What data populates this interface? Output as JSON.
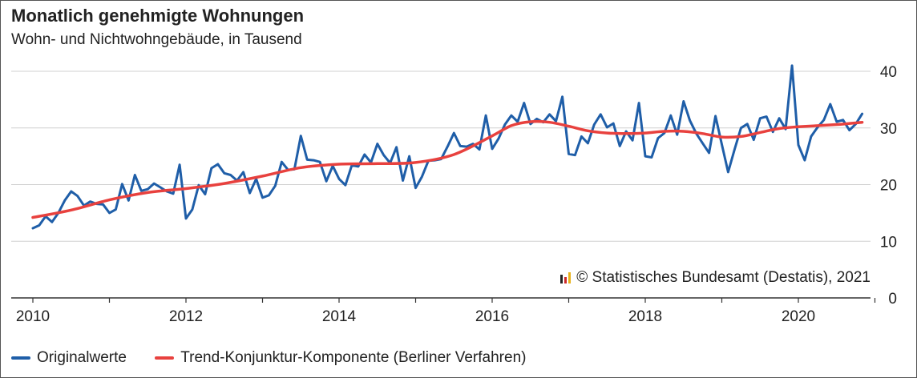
{
  "title": "Monatlich genehmigte Wohnungen",
  "subtitle": "Wohn- und Nichtwohngebäude, in Tausend",
  "source": "© Statistisches Bundesamt (Destatis), 2021",
  "colors": {
    "original": "#1f5ea8",
    "trend": "#e8413e",
    "grid": "#d0d0d0",
    "axis": "#333333",
    "logo": [
      "#222222",
      "#cc2a2a",
      "#e8b21a"
    ]
  },
  "chart_data": {
    "type": "line",
    "title": "Monatlich genehmigte Wohnungen",
    "subtitle": "Wohn- und Nichtwohngebäude, in Tausend",
    "xlim": [
      2010,
      2021
    ],
    "ylim": [
      0,
      40
    ],
    "y_axis_side": "right",
    "grid": true,
    "legend_position": "bottom",
    "x_ticks": [
      "2010",
      "2012",
      "2014",
      "2016",
      "2018",
      "2020"
    ],
    "y_ticks": [
      "0",
      "10",
      "20",
      "30",
      "40"
    ],
    "series": [
      {
        "name": "Originalwerte",
        "x": [
          2010.0,
          2010.083,
          2010.167,
          2010.25,
          2010.333,
          2010.417,
          2010.5,
          2010.583,
          2010.667,
          2010.75,
          2010.833,
          2010.917,
          2011.0,
          2011.083,
          2011.167,
          2011.25,
          2011.333,
          2011.417,
          2011.5,
          2011.583,
          2011.667,
          2011.75,
          2011.833,
          2011.917,
          2012.0,
          2012.083,
          2012.167,
          2012.25,
          2012.333,
          2012.417,
          2012.5,
          2012.583,
          2012.667,
          2012.75,
          2012.833,
          2012.917,
          2013.0,
          2013.083,
          2013.167,
          2013.25,
          2013.333,
          2013.417,
          2013.5,
          2013.583,
          2013.667,
          2013.75,
          2013.833,
          2013.917,
          2014.0,
          2014.083,
          2014.167,
          2014.25,
          2014.333,
          2014.417,
          2014.5,
          2014.583,
          2014.667,
          2014.75,
          2014.833,
          2014.917,
          2015.0,
          2015.083,
          2015.167,
          2015.25,
          2015.333,
          2015.417,
          2015.5,
          2015.583,
          2015.667,
          2015.75,
          2015.833,
          2015.917,
          2016.0,
          2016.083,
          2016.167,
          2016.25,
          2016.333,
          2016.417,
          2016.5,
          2016.583,
          2016.667,
          2016.75,
          2016.833,
          2016.917,
          2017.0,
          2017.083,
          2017.167,
          2017.25,
          2017.333,
          2017.417,
          2017.5,
          2017.583,
          2017.667,
          2017.75,
          2017.833,
          2017.917,
          2018.0,
          2018.083,
          2018.167,
          2018.25,
          2018.333,
          2018.417,
          2018.5,
          2018.583,
          2018.667,
          2018.75,
          2018.833,
          2018.917,
          2019.0,
          2019.083,
          2019.167,
          2019.25,
          2019.333,
          2019.417,
          2019.5,
          2019.583,
          2019.667,
          2019.75,
          2019.833,
          2019.917,
          2020.0,
          2020.083,
          2020.167,
          2020.25,
          2020.333,
          2020.417,
          2020.5,
          2020.583,
          2020.667,
          2020.75,
          2020.833
        ],
        "values": [
          12.3,
          12.8,
          14.4,
          13.4,
          15.0,
          17.2,
          18.8,
          18.0,
          16.3,
          17.0,
          16.6,
          16.5,
          15.0,
          15.6,
          20.1,
          17.2,
          21.7,
          18.9,
          19.2,
          20.2,
          19.5,
          18.8,
          18.4,
          23.5,
          14.0,
          15.6,
          19.9,
          18.3,
          22.9,
          23.6,
          22.0,
          21.7,
          20.7,
          22.2,
          18.5,
          21.0,
          17.7,
          18.1,
          19.8,
          24.0,
          22.6,
          22.7,
          28.6,
          24.4,
          24.3,
          24.0,
          20.6,
          23.3,
          21.0,
          19.9,
          23.4,
          23.2,
          25.3,
          23.9,
          27.2,
          25.2,
          23.8,
          26.6,
          20.7,
          25.0,
          19.4,
          21.4,
          24.2,
          24.3,
          24.5,
          26.7,
          29.1,
          26.8,
          26.7,
          27.2,
          26.2,
          32.2,
          26.3,
          28.1,
          30.6,
          32.2,
          31.1,
          34.4,
          30.7,
          31.6,
          31.0,
          32.4,
          31.2,
          35.5,
          25.4,
          25.2,
          28.5,
          27.3,
          30.6,
          32.4,
          30.1,
          30.8,
          26.8,
          29.4,
          27.8,
          34.4,
          25.0,
          24.8,
          28.2,
          29.1,
          32.2,
          28.8,
          34.7,
          31.3,
          29.0,
          27.3,
          25.6,
          32.1,
          27.1,
          22.2,
          26.2,
          30.0,
          30.7,
          27.9,
          31.7,
          32.0,
          29.3,
          31.7,
          29.8,
          41.0,
          27.0,
          24.3,
          28.5,
          30.1,
          31.4,
          34.2,
          31.1,
          31.4,
          29.6,
          30.7,
          32.5
        ]
      },
      {
        "name": "Trend-Konjunktur-Komponente (Berliner Verfahren)",
        "x": [
          2010.0,
          2010.5,
          2011.0,
          2011.5,
          2012.0,
          2012.5,
          2013.0,
          2013.5,
          2014.0,
          2014.5,
          2015.0,
          2015.5,
          2016.0,
          2016.25,
          2016.5,
          2016.75,
          2017.0,
          2017.25,
          2017.5,
          2017.75,
          2018.0,
          2018.25,
          2018.5,
          2018.75,
          2019.0,
          2019.25,
          2019.5,
          2019.75,
          2020.0,
          2020.5,
          2020.833
        ],
        "values": [
          14.2,
          15.5,
          17.3,
          18.6,
          19.3,
          20.2,
          21.5,
          23.0,
          23.6,
          23.7,
          23.9,
          25.3,
          28.6,
          30.4,
          31.1,
          31.0,
          30.3,
          29.5,
          29.1,
          29.0,
          29.1,
          29.4,
          29.4,
          29.0,
          28.4,
          28.5,
          29.2,
          29.9,
          30.2,
          30.6,
          31.0
        ]
      }
    ]
  }
}
